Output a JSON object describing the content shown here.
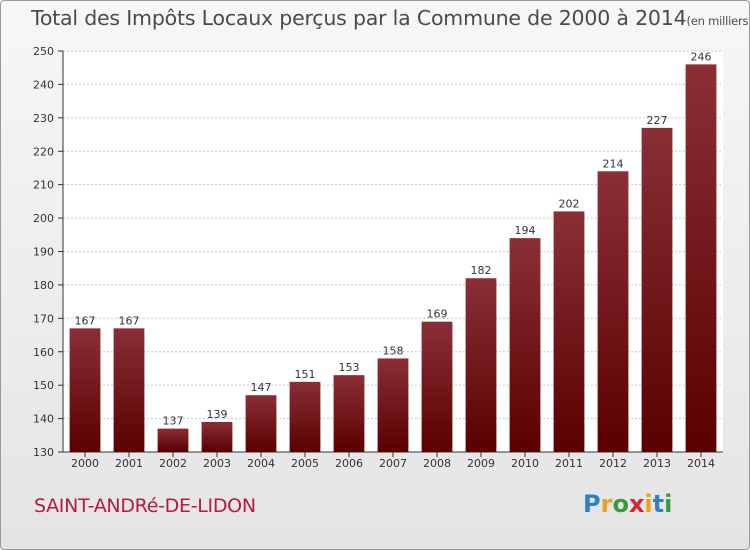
{
  "title": "Total des Impôts Locaux perçus par la Commune de 2000 à 2014",
  "title_unit": "(en milliers d'€)",
  "commune": "SAINT-ANDRé-DE-LIDON",
  "logo": {
    "p": "P",
    "r": "r",
    "o": "o",
    "x": "x",
    "i": "i",
    "t": "t",
    "i2": "i"
  },
  "colors": {
    "bar_top": "#8a2f36",
    "bar_bottom": "#5a0000",
    "commune": "#b01e3c"
  },
  "chart_data": {
    "type": "bar",
    "title": "Total des Impôts Locaux perçus par la Commune de 2000 à 2014",
    "xlabel": "",
    "ylabel": "",
    "categories": [
      "2000",
      "2001",
      "2002",
      "2003",
      "2004",
      "2005",
      "2006",
      "2007",
      "2008",
      "2009",
      "2010",
      "2011",
      "2012",
      "2013",
      "2014"
    ],
    "values": [
      167,
      167,
      137,
      139,
      147,
      151,
      153,
      158,
      169,
      182,
      194,
      202,
      214,
      227,
      246
    ],
    "ylim": [
      130,
      250
    ],
    "yticks": [
      130,
      140,
      150,
      160,
      170,
      180,
      190,
      200,
      210,
      220,
      230,
      240,
      250
    ],
    "grid": true,
    "legend": "none"
  }
}
